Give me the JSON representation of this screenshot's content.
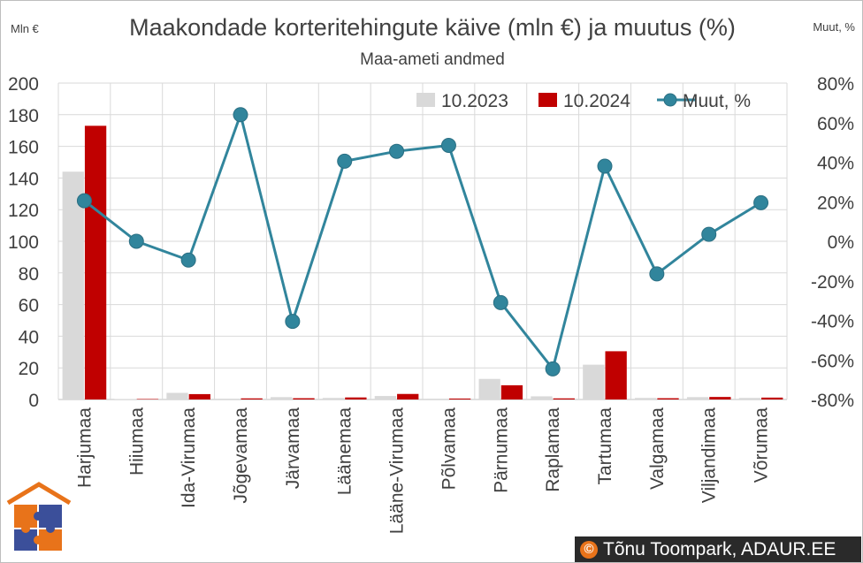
{
  "chart_data": {
    "type": "bar",
    "title": "Maakondade korteritehingute käive (mln €) ja muutus (%)",
    "subtitle": "Maa-ameti andmed",
    "ylabel_left": "Mln €",
    "ylabel_right": "Muut, %",
    "categories": [
      "Harjumaa",
      "Hiiumaa",
      "Ida-Virumaa",
      "Jõgevamaa",
      "Järvamaa",
      "Läänemaa",
      "Lääne-Virumaa",
      "Põlvamaa",
      "Pärnumaa",
      "Raplamaa",
      "Tartumaa",
      "Valgamaa",
      "Viljandimaa",
      "Võrumaa"
    ],
    "series": [
      {
        "name": "10.2023",
        "kind": "bar",
        "color": "#d9d9d9",
        "values": [
          144,
          0.3,
          4.2,
          0.5,
          1.5,
          1.0,
          2.2,
          0.5,
          13,
          2.0,
          22,
          1.0,
          1.5,
          1.0
        ]
      },
      {
        "name": "10.2024",
        "kind": "bar",
        "color": "#c00000",
        "values": [
          173,
          0.3,
          3.4,
          0.7,
          0.8,
          1.3,
          3.5,
          0.6,
          9.0,
          0.7,
          30.5,
          0.8,
          1.6,
          1.2
        ]
      },
      {
        "name": "Muut, %",
        "kind": "line",
        "axis": "right",
        "color": "#31859c",
        "values": [
          20.5,
          0,
          -9.5,
          64,
          -40.5,
          40.5,
          45.5,
          48.5,
          -31,
          -64.5,
          38,
          -16.5,
          3.5,
          19.5
        ]
      }
    ],
    "y_left": {
      "min": 0,
      "max": 200,
      "ticks": [
        "0",
        "20",
        "40",
        "60",
        "80",
        "100",
        "120",
        "140",
        "160",
        "180",
        "200"
      ]
    },
    "y_right": {
      "min": -80,
      "max": 80,
      "ticks": [
        "-80%",
        "-60%",
        "-40%",
        "-20%",
        "0%",
        "20%",
        "40%",
        "60%",
        "80%"
      ]
    },
    "grid": true,
    "legend_position": "top-right"
  },
  "copyright": {
    "symbol": "©",
    "text": "Tõnu Toompark, ADAUR.EE"
  },
  "colors": {
    "logo_house": "#e8731a",
    "logo_puzzle_blue": "#3b4f9a",
    "logo_puzzle_orange": "#e8731a"
  }
}
